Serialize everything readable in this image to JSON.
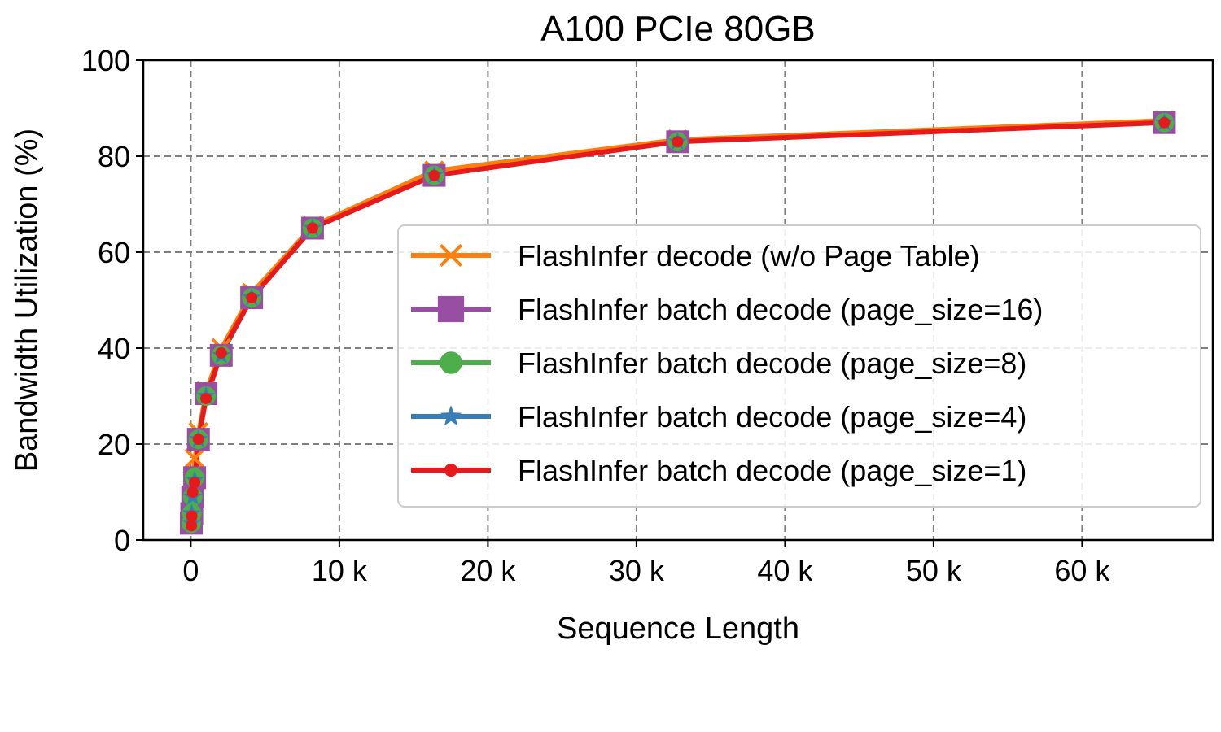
{
  "chart_data": {
    "type": "line",
    "title": "A100 PCIe 80GB",
    "xlabel": "Sequence Length",
    "ylabel": "Bandwidth Utilization (%)",
    "xlim": [
      -3200,
      68800
    ],
    "ylim": [
      0,
      100
    ],
    "xticks": [
      {
        "value": 0,
        "label": "0"
      },
      {
        "value": 10000,
        "label": "10 k"
      },
      {
        "value": 20000,
        "label": "20 k"
      },
      {
        "value": 30000,
        "label": "30 k"
      },
      {
        "value": 40000,
        "label": "40 k"
      },
      {
        "value": 50000,
        "label": "50 k"
      },
      {
        "value": 60000,
        "label": "60 k"
      }
    ],
    "yticks": [
      {
        "value": 0,
        "label": "0"
      },
      {
        "value": 20,
        "label": "20"
      },
      {
        "value": 40,
        "label": "40"
      },
      {
        "value": 60,
        "label": "60"
      },
      {
        "value": 80,
        "label": "80"
      },
      {
        "value": 100,
        "label": "100"
      }
    ],
    "grid": true,
    "legend_position": "right",
    "x": [
      32,
      64,
      128,
      256,
      512,
      1024,
      2048,
      4096,
      8192,
      16384,
      32768,
      65536
    ],
    "series": [
      {
        "name": "FlashInfer decode (w/o Page Table)",
        "color": "#ff7f0e",
        "marker": "x",
        "values": [
          5.0,
          8.0,
          12.5,
          17.0,
          22.5,
          31.0,
          40.0,
          51.5,
          65.5,
          77.0,
          83.5,
          87.5
        ]
      },
      {
        "name": "FlashInfer batch decode (page_size=16)",
        "color": "#984ea3",
        "marker": "square",
        "values": [
          3.5,
          5.5,
          9.0,
          13.0,
          21.0,
          30.5,
          38.5,
          50.5,
          65.0,
          76.0,
          83.0,
          87.0
        ]
      },
      {
        "name": "FlashInfer batch decode (page_size=8)",
        "color": "#4daf4a",
        "marker": "circle",
        "values": [
          3.5,
          5.5,
          9.0,
          13.0,
          21.0,
          30.0,
          38.5,
          50.5,
          65.0,
          76.0,
          83.0,
          87.0
        ]
      },
      {
        "name": "FlashInfer batch decode (page_size=4)",
        "color": "#377eb8",
        "marker": "star",
        "values": [
          3.5,
          5.5,
          9.0,
          12.5,
          21.0,
          30.0,
          38.5,
          50.5,
          65.0,
          76.0,
          83.0,
          87.0
        ]
      },
      {
        "name": "FlashInfer batch decode (page_size=1)",
        "color": "#e41a1c",
        "marker": "dot",
        "values": [
          3.0,
          5.0,
          10.0,
          12.0,
          21.0,
          29.5,
          39.0,
          50.5,
          65.0,
          76.0,
          83.0,
          87.0
        ]
      }
    ]
  }
}
